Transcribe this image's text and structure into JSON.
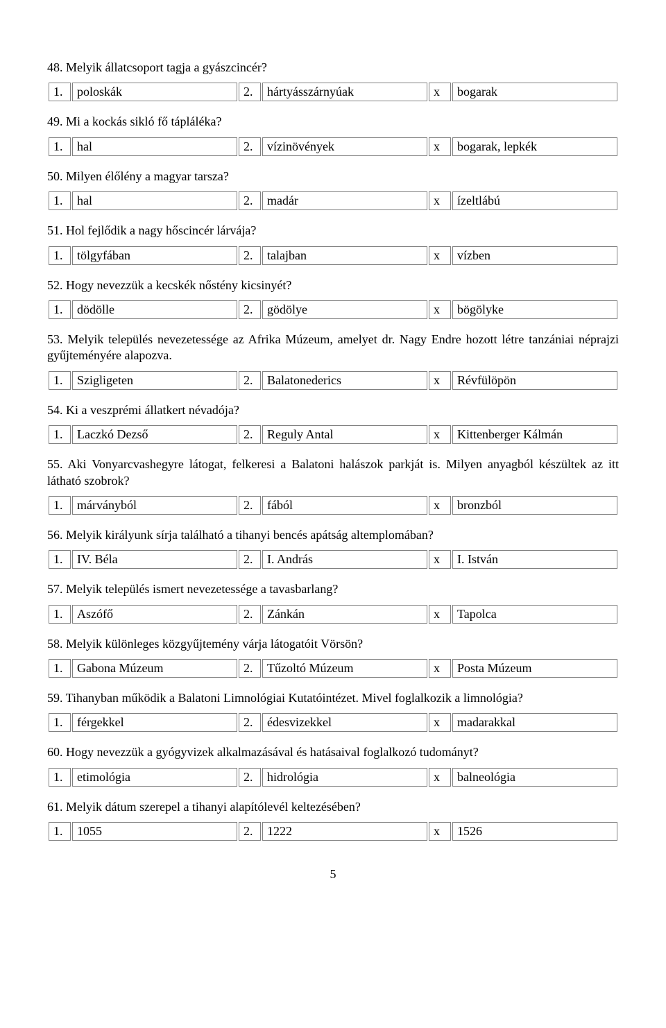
{
  "questions": [
    {
      "num": "48.",
      "text": "Melyik állatcsoport tagja a gyászcincér?",
      "a1": "poloskák",
      "a2": "hártyásszárnyúak",
      "a3": "bogarak"
    },
    {
      "num": "49.",
      "text": "Mi a kockás sikló fő tápláléka?",
      "a1": "hal",
      "a2": "vízinövények",
      "a3": "bogarak, lepkék"
    },
    {
      "num": "50.",
      "text": "Milyen élőlény a magyar tarsza?",
      "a1": "hal",
      "a2": "madár",
      "a3": "ízeltlábú"
    },
    {
      "num": "51.",
      "text": "Hol fejlődik a nagy hőscincér lárvája?",
      "a1": "tölgyfában",
      "a2": "talajban",
      "a3": "vízben"
    },
    {
      "num": "52.",
      "text": "Hogy nevezzük a kecskék nőstény kicsinyét?",
      "a1": "dödölle",
      "a2": "gödölye",
      "a3": "bögölyke"
    },
    {
      "num": "53.",
      "text": "Melyik település nevezetessége az Afrika Múzeum, amelyet dr. Nagy Endre hozott létre tanzániai néprajzi gyűjteményére alapozva.",
      "a1": "Szigligeten",
      "a2": "Balatonederics",
      "a3": "Révfülöpön"
    },
    {
      "num": "54.",
      "text": "Ki a veszprémi állatkert névadója?",
      "a1": "Laczkó Dezső",
      "a2": "Reguly Antal",
      "a3": "Kittenberger Kálmán"
    },
    {
      "num": "55.",
      "text": "Aki Vonyarcvashegyre látogat, felkeresi a Balatoni halászok parkját is. Milyen anyagból készültek az itt látható szobrok?",
      "a1": "márványból",
      "a2": "fából",
      "a3": "bronzból"
    },
    {
      "num": "56.",
      "text": "Melyik királyunk sírja található a tihanyi bencés apátság altemplomában?",
      "a1": "IV. Béla",
      "a2": "I. András",
      "a3": "I. István"
    },
    {
      "num": "57.",
      "text": "Melyik település ismert nevezetessége a tavasbarlang?",
      "a1": "Aszófő",
      "a2": "Zánkán",
      "a3": "Tapolca"
    },
    {
      "num": "58.",
      "text": "Melyik különleges közgyűjtemény várja látogatóit Vörsön?",
      "a1": "Gabona Múzeum",
      "a2": "Tűzoltó Múzeum",
      "a3": "Posta Múzeum"
    },
    {
      "num": "59.",
      "text": "Tihanyban működik a Balatoni Limnológiai Kutatóintézet. Mivel foglalkozik a limnológia?",
      "a1": "férgekkel",
      "a2": "édesvizekkel",
      "a3": "madarakkal"
    },
    {
      "num": "60.",
      "text": "Hogy nevezzük a gyógyvizek alkalmazásával és hatásaival foglalkozó tudományt?",
      "a1": "etimológia",
      "a2": "hidrológia",
      "a3": "balneológia"
    },
    {
      "num": "61.",
      "text": "Melyik dátum szerepel a tihanyi alapítólevél keltezésében?",
      "a1": "1055",
      "a2": "1222",
      "a3": "1526"
    }
  ],
  "labels": {
    "n1": "1.",
    "n2": "2.",
    "x": "x"
  },
  "page_number": "5"
}
